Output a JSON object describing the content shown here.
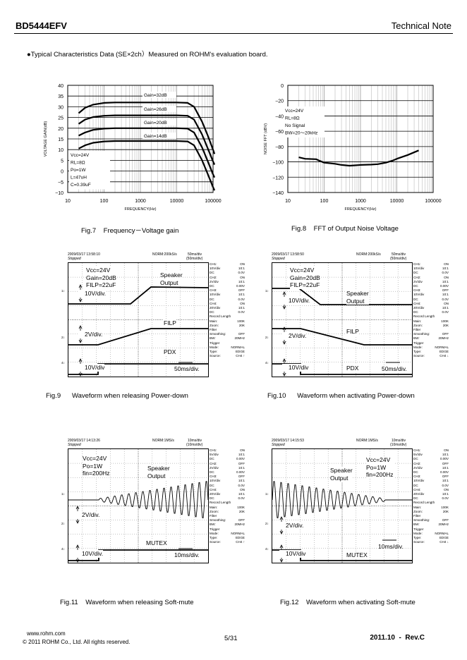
{
  "header": {
    "doc_id": "BD5444EFV",
    "doc_type": "Technical Note"
  },
  "intro": "●Typical Characteristics Data (SE×2ch）Measured on ROHM's evaluation board.",
  "figures": {
    "fig7": {
      "caption": "Fig.7    Frequency－Voltage gain"
    },
    "fig8": {
      "caption": "Fig.8    FFT of Output Noise Voltage"
    },
    "fig9": {
      "caption": "Fig.9      Waveform when releasing Power-down"
    },
    "fig10": {
      "caption": "Fig.10      Waveform when activating Power-down"
    },
    "fig11": {
      "caption": "Fig.11    Waveform when releasing Soft-mute"
    },
    "fig12": {
      "caption": "Fig.12    Waveform when activating Soft-mute"
    }
  },
  "chart_data": [
    {
      "type": "line",
      "xlabel": "FREQUENCY(Hz)",
      "ylabel": "VOLTAGE GAIN(dB)",
      "xscale": "log",
      "xlim": [
        10,
        100000
      ],
      "ylim": [
        -10,
        40
      ],
      "xticks": [
        "10",
        "100",
        "1000",
        "10000",
        "100000"
      ],
      "yticks": [
        "40",
        "35",
        "30",
        "25",
        "20",
        "15",
        "10",
        "5",
        "0",
        "−5",
        "−10"
      ],
      "conditions": [
        "Vcc=24V",
        "RL=8Ω",
        "Po=1W",
        "L=47uH",
        "C=0.39uF"
      ],
      "x": [
        20,
        30,
        50,
        100,
        200,
        1000,
        10000,
        20000,
        30000,
        50000,
        70000,
        100000,
        110000
      ],
      "series": [
        {
          "name": "Gain=32dB",
          "values": [
            27,
            29.5,
            31,
            31.8,
            32,
            32,
            32,
            31.8,
            30,
            23,
            17,
            10,
            8
          ]
        },
        {
          "name": "Gain=26dB",
          "values": [
            22,
            24,
            25.2,
            25.8,
            26,
            26,
            26,
            25.8,
            24,
            17,
            11,
            4.5,
            3
          ]
        },
        {
          "name": "Gain=20dB",
          "values": [
            16.5,
            18,
            19.2,
            19.8,
            20,
            20,
            20,
            19.8,
            18,
            11,
            5,
            -1.5,
            -3
          ]
        },
        {
          "name": "Gain=14dB",
          "values": [
            10.5,
            12,
            13.2,
            13.8,
            14,
            14,
            14,
            13.8,
            12,
            5,
            -1,
            -7.5,
            -9
          ]
        }
      ],
      "grid": true
    },
    {
      "type": "line",
      "xlabel": "FREQUENCY(Hz)",
      "ylabel": "NOISE FFT (dBV)",
      "xscale": "log",
      "xlim": [
        10,
        100000
      ],
      "ylim": [
        -140,
        0
      ],
      "xticks": [
        "10",
        "100",
        "1000",
        "10000",
        "100000"
      ],
      "yticks": [
        "0",
        "−20",
        "−40",
        "−60",
        "−80",
        "−100",
        "−120",
        "−140"
      ],
      "conditions": [
        "Vcc=24V",
        "RL=8Ω",
        "No Signal",
        "BW=20～20kHz"
      ],
      "x": [
        20,
        30,
        60,
        70,
        100,
        200,
        300,
        500,
        700,
        1000,
        2000,
        3000,
        5000,
        8000,
        10000,
        20000,
        40000
      ],
      "series": [
        {
          "values": [
            -94,
            -96,
            -96.5,
            -98,
            -101,
            -102.5,
            -104,
            -105,
            -104.5,
            -104,
            -103.5,
            -103,
            -101,
            -98,
            -96,
            -91,
            -85
          ]
        }
      ],
      "grid": true
    }
  ],
  "scopes": [
    {
      "date": "2009/03/17  13:58:10",
      "state": "Stopped",
      "rate": "NORM:200kS/s",
      "div": "50ms/div",
      "zdiv": "(50ms/div)",
      "labels": [
        "Vcc=24V\nGain=20dB\nFILP=22uF",
        "Speaker\nOutput",
        "10V/div.",
        "FILP",
        "2V/div.",
        "PDX",
        "10V/div",
        "50ms/div."
      ],
      "panel": [
        [
          "CH1:",
          "ON"
        ],
        [
          "10V/div",
          "10:1"
        ],
        [
          "DC",
          "0.0V"
        ],
        [
          "CH2:",
          "ON"
        ],
        [
          "2V/div",
          "10:1"
        ],
        [
          "DC",
          "0.00V"
        ],
        [
          "CH3:",
          "OFF"
        ],
        [
          "10V/div",
          "10:1"
        ],
        [
          "DC",
          "0.0V"
        ],
        [
          "CH4:",
          "ON"
        ],
        [
          "20V/div",
          "10:1"
        ],
        [
          "DC",
          "0.0V"
        ],
        [
          "Record Length",
          ""
        ],
        [
          "Main:",
          "100K"
        ],
        [
          "Zoom:",
          "20K"
        ],
        [
          "Filter",
          ""
        ],
        [
          "Smoothing:",
          "OFF"
        ],
        [
          "BW:",
          "20MHz"
        ],
        [
          "Trigger",
          ""
        ],
        [
          "Mode:",
          "NORMAL"
        ],
        [
          "Type:",
          "EDGE"
        ],
        [
          "Source:",
          "CH4 ↑"
        ]
      ]
    },
    {
      "date": "2009/03/17  13:58:50",
      "state": "Stopped",
      "rate": "NORM:200kS/s",
      "div": "50ms/div",
      "zdiv": "(50ms/div)",
      "labels": [
        "Vcc=24V\nGain=20dB\nFILP=22uF",
        "Speaker\nOutput",
        "10V/div.",
        "FILP",
        "2V/div.",
        "PDX",
        "10V/div",
        "50ms/div."
      ],
      "panel": [
        [
          "CH1:",
          "ON"
        ],
        [
          "10V/div",
          "10:1"
        ],
        [
          "DC",
          "0.0V"
        ],
        [
          "CH2:",
          "ON"
        ],
        [
          "2V/div",
          "10:1"
        ],
        [
          "DC",
          "0.00V"
        ],
        [
          "CH3:",
          "OFF"
        ],
        [
          "10V/div",
          "10:1"
        ],
        [
          "DC",
          "0.0V"
        ],
        [
          "CH4:",
          "ON"
        ],
        [
          "20V/div",
          "10:1"
        ],
        [
          "DC",
          "0.0V"
        ],
        [
          "Record Length",
          ""
        ],
        [
          "Main:",
          "100K"
        ],
        [
          "Zoom:",
          "20K"
        ],
        [
          "Filter",
          ""
        ],
        [
          "Smoothing:",
          "OFF"
        ],
        [
          "BW:",
          "20MHz"
        ],
        [
          "Trigger",
          ""
        ],
        [
          "Mode:",
          "NORMAL"
        ],
        [
          "Type:",
          "EDGE"
        ],
        [
          "Source:",
          "CH4 ↓"
        ]
      ]
    },
    {
      "date": "2009/03/17  14:13:26",
      "state": "Stopped",
      "rate": "NORM:1MS/s",
      "div": "10ms/div",
      "zdiv": "(10ms/div)",
      "labels": [
        "Vcc=24V\nPo=1W\nfin=200Hz",
        "Speaker\nOutput",
        "2V/div.",
        "MUTEX",
        "10V/div.",
        "10ms/div."
      ],
      "panel": [
        [
          "CH1:",
          "ON"
        ],
        [
          "5V/div",
          "10:1"
        ],
        [
          "DC",
          "0.00V"
        ],
        [
          "CH2:",
          "OFF"
        ],
        [
          "2V/div",
          "10:1"
        ],
        [
          "DC",
          "0.00V"
        ],
        [
          "CH3:",
          "OFF"
        ],
        [
          "10V/div",
          "10:1"
        ],
        [
          "DC",
          "0.0V"
        ],
        [
          "CH4:",
          "ON"
        ],
        [
          "20V/div",
          "10:1"
        ],
        [
          "DC",
          "0.0V"
        ],
        [
          "Record Length",
          ""
        ],
        [
          "Main:",
          "100K"
        ],
        [
          "Zoom:",
          "20K"
        ],
        [
          "Filter",
          ""
        ],
        [
          "Smoothing:",
          "OFF"
        ],
        [
          "BW:",
          "20MHz"
        ],
        [
          "Trigger",
          ""
        ],
        [
          "Mode:",
          "NORMAL"
        ],
        [
          "Type:",
          "EDGE"
        ],
        [
          "Source:",
          "CH4 ↑"
        ]
      ]
    },
    {
      "date": "2009/03/17  14:15:53",
      "state": "Stopped",
      "rate": "NORM:1MS/s",
      "div": "10ms/div",
      "zdiv": "(10ms/div)",
      "labels": [
        "Vcc=24V\nPo=1W\nfin=200Hz",
        "Speaker\nOutput",
        "2V/div.",
        "MUTEX",
        "10V/div",
        "10ms/div."
      ],
      "panel": [
        [
          "CH1:",
          "ON"
        ],
        [
          "5V/div",
          "10:1"
        ],
        [
          "DC",
          "0.00V"
        ],
        [
          "CH2:",
          "OFF"
        ],
        [
          "2V/div",
          "10:1"
        ],
        [
          "DC",
          "0.00V"
        ],
        [
          "CH3:",
          "OFF"
        ],
        [
          "10V/div",
          "10:1"
        ],
        [
          "DC",
          "0.0V"
        ],
        [
          "CH4:",
          "ON"
        ],
        [
          "20V/div",
          "10:1"
        ],
        [
          "DC",
          "0.0V"
        ],
        [
          "Record Length",
          ""
        ],
        [
          "Main:",
          "100K"
        ],
        [
          "Zoom:",
          "20K"
        ],
        [
          "Filter",
          ""
        ],
        [
          "Smoothing:",
          "OFF"
        ],
        [
          "BW:",
          "20MHz"
        ],
        [
          "Trigger",
          ""
        ],
        [
          "Mode:",
          "NORMAL"
        ],
        [
          "Type:",
          "EDGE"
        ],
        [
          "Source:",
          "CH4 ↓"
        ]
      ]
    }
  ],
  "footer": {
    "url": "www.rohm.com",
    "copyright": "© 2011 ROHM Co., Ltd. All rights reserved.",
    "page": "5/31",
    "rev": "2011.10  -  Rev.C"
  }
}
